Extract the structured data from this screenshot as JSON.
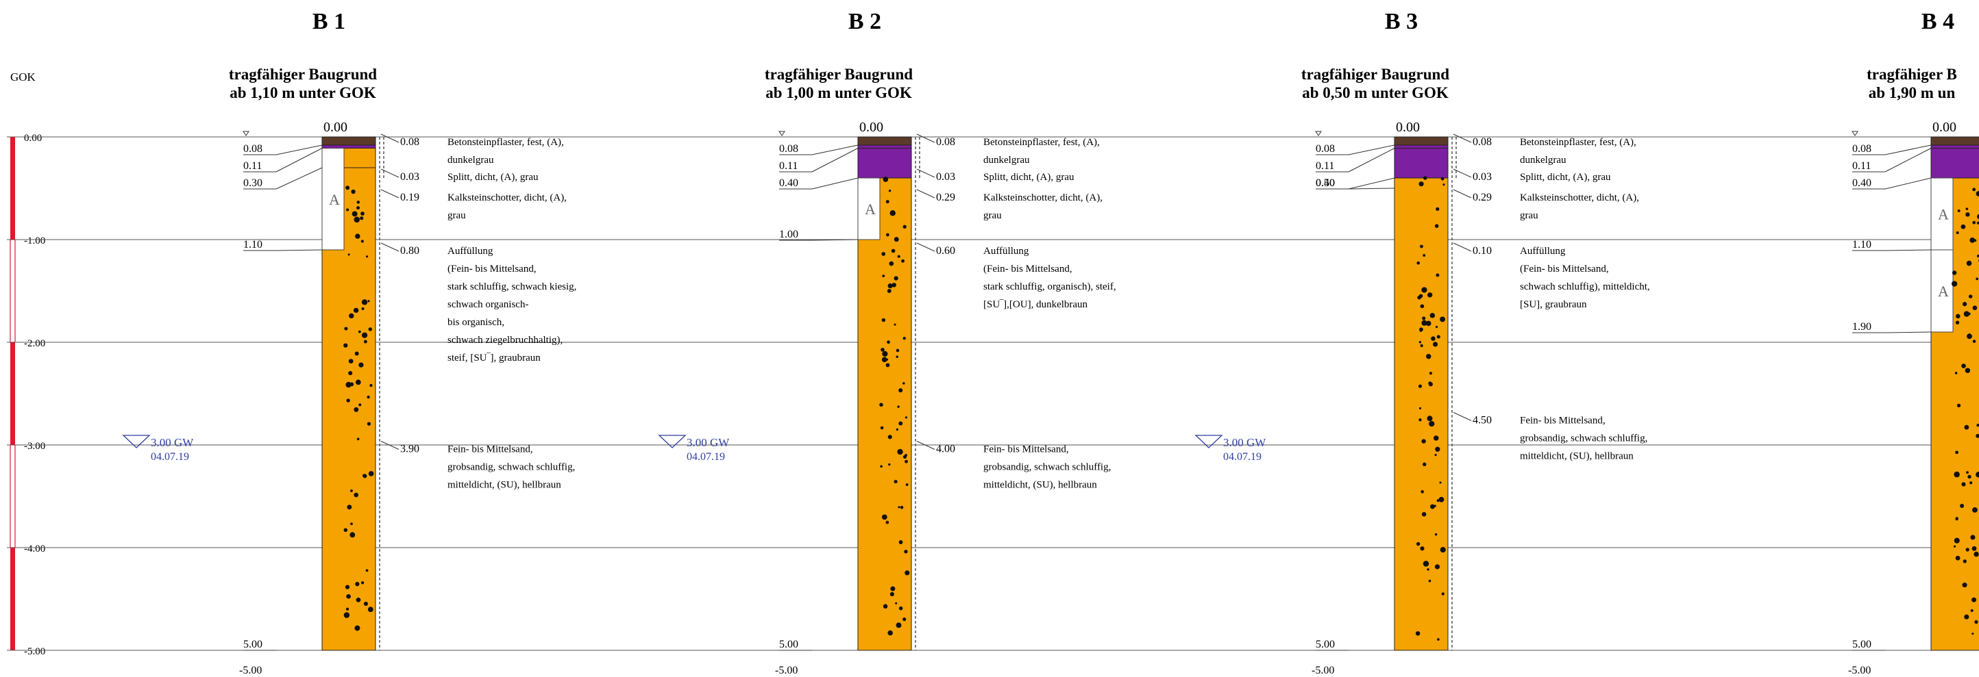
{
  "depth_scale": {
    "title": "GOK",
    "ticks": [
      "0.00",
      "-1.00",
      "-2.00",
      "-3.00",
      "-4.00",
      "-5.00"
    ]
  },
  "colors": {
    "pavement": "#5b3a29",
    "split": "#7c1fa0",
    "fill": "#f5a300",
    "scale_red": "#e0192d",
    "water": "#2f3f9e",
    "line": "#333333"
  },
  "boreholes": [
    {
      "id": "B 1",
      "header": [
        "tragfähiger Baugrund",
        "ab 1,10 m unter GOK"
      ],
      "top_label": "0.00",
      "depth_labels": [
        "0.08",
        "0.11",
        "0.30",
        "1.10",
        "5.00"
      ],
      "bottom_label": "-5.00",
      "layers": [
        {
          "top": 0.0,
          "bottom": 0.08,
          "material": "pavement"
        },
        {
          "top": 0.08,
          "bottom": 0.11,
          "material": "split"
        },
        {
          "top": 0.11,
          "bottom": 0.3,
          "material": "fill"
        },
        {
          "top": 0.3,
          "bottom": 5.0,
          "material": "fill"
        }
      ],
      "sample_a": [
        {
          "top": 0.11,
          "bottom": 1.1,
          "label": "A"
        }
      ],
      "thickness": [
        {
          "value": "0.08",
          "depth": 0.04
        },
        {
          "value": "0.03",
          "depth": 0.38
        },
        {
          "value": "0.19",
          "depth": 0.58
        },
        {
          "value": "0.80",
          "depth": 1.1
        },
        {
          "value": "3.90",
          "depth": 3.03
        }
      ],
      "descriptions": [
        {
          "depth": 0.04,
          "lines": [
            "Betonsteinpflaster, fest, (A),",
            "dunkelgrau"
          ]
        },
        {
          "depth": 0.38,
          "lines": [
            "Splitt, dicht, (A), grau"
          ]
        },
        {
          "depth": 0.58,
          "lines": [
            "Kalksteinschotter, dicht, (A),",
            "grau"
          ]
        },
        {
          "depth": 1.1,
          "lines": [
            "Auffüllung",
            "(Fein- bis Mittelsand,",
            "stark schluffig, schwach kiesig,",
            "schwach organisch-",
            "bis organisch,",
            "schwach ziegelbruchhaltig),",
            "steif, [SU‾], graubraun"
          ]
        },
        {
          "depth": 3.03,
          "lines": [
            "Fein- bis Mittelsand,",
            "grobsandig, schwach schluffig,",
            "mitteldicht, (SU), hellbraun"
          ]
        }
      ],
      "groundwater": {
        "depth": 3.0,
        "label": "3.00 GW",
        "date": "04.07.19"
      }
    },
    {
      "id": "B 2",
      "header": [
        "tragfähiger Baugrund",
        "ab 1,00 m unter GOK"
      ],
      "top_label": "0.00",
      "depth_labels": [
        "0.08",
        "0.11",
        "0.40",
        "1.00",
        "5.00"
      ],
      "bottom_label": "-5.00",
      "layers": [
        {
          "top": 0.0,
          "bottom": 0.08,
          "material": "pavement"
        },
        {
          "top": 0.08,
          "bottom": 0.11,
          "material": "split"
        },
        {
          "top": 0.11,
          "bottom": 0.4,
          "material": "split"
        },
        {
          "top": 0.4,
          "bottom": 5.0,
          "material": "fill"
        }
      ],
      "sample_a": [
        {
          "top": 0.4,
          "bottom": 1.0,
          "label": "A"
        }
      ],
      "thickness": [
        {
          "value": "0.08",
          "depth": 0.04
        },
        {
          "value": "0.03",
          "depth": 0.38
        },
        {
          "value": "0.29",
          "depth": 0.58
        },
        {
          "value": "0.60",
          "depth": 1.1
        },
        {
          "value": "4.00",
          "depth": 3.03
        }
      ],
      "descriptions": [
        {
          "depth": 0.04,
          "lines": [
            "Betonsteinpflaster, fest, (A),",
            "dunkelgrau"
          ]
        },
        {
          "depth": 0.38,
          "lines": [
            "Splitt, dicht, (A), grau"
          ]
        },
        {
          "depth": 0.58,
          "lines": [
            "Kalksteinschotter, dicht, (A),",
            "grau"
          ]
        },
        {
          "depth": 1.1,
          "lines": [
            "Auffüllung",
            "(Fein- bis Mittelsand,",
            "stark schluffig, organisch), steif,",
            "[SU‾],[OU], dunkelbraun"
          ]
        },
        {
          "depth": 3.03,
          "lines": [
            "Fein- bis Mittelsand,",
            "grobsandig, schwach schluffig,",
            "mitteldicht, (SU), hellbraun"
          ]
        }
      ],
      "groundwater": {
        "depth": 3.0,
        "label": "3.00 GW",
        "date": "04.07.19"
      }
    },
    {
      "id": "B 3",
      "header": [
        "tragfähiger Baugrund",
        "ab 0,50 m unter GOK"
      ],
      "top_label": "0.00",
      "depth_labels": [
        "0.08",
        "0.11",
        "0.40",
        "0.50",
        "5.00"
      ],
      "bottom_label": "-5.00",
      "layers": [
        {
          "top": 0.0,
          "bottom": 0.08,
          "material": "pavement"
        },
        {
          "top": 0.08,
          "bottom": 0.11,
          "material": "split"
        },
        {
          "top": 0.11,
          "bottom": 0.4,
          "material": "split"
        },
        {
          "top": 0.4,
          "bottom": 5.0,
          "material": "fill"
        }
      ],
      "sample_a": [],
      "thickness": [
        {
          "value": "0.08",
          "depth": 0.04
        },
        {
          "value": "0.03",
          "depth": 0.38
        },
        {
          "value": "0.29",
          "depth": 0.58
        },
        {
          "value": "0.10",
          "depth": 1.1
        },
        {
          "value": "4.50",
          "depth": 2.75
        }
      ],
      "descriptions": [
        {
          "depth": 0.04,
          "lines": [
            "Betonsteinpflaster, fest, (A),",
            "dunkelgrau"
          ]
        },
        {
          "depth": 0.38,
          "lines": [
            "Splitt, dicht, (A), grau"
          ]
        },
        {
          "depth": 0.58,
          "lines": [
            "Kalksteinschotter, dicht, (A),",
            "grau"
          ]
        },
        {
          "depth": 1.1,
          "lines": [
            "Auffüllung",
            "(Fein- bis Mittelsand,",
            "schwach schluffig), mitteldicht,",
            "[SU], graubraun"
          ]
        },
        {
          "depth": 2.75,
          "lines": [
            "Fein- bis Mittelsand,",
            "grobsandig, schwach schluffig,",
            "mitteldicht, (SU), hellbraun"
          ]
        }
      ],
      "groundwater": {
        "depth": 3.0,
        "label": "3.00 GW",
        "date": "04.07.19"
      }
    },
    {
      "id": "B 4",
      "header": [
        "tragfähiger B",
        "ab 1,90 m un"
      ],
      "top_label": "0.00",
      "depth_labels": [
        "0.08",
        "0.11",
        "0.40",
        "1.10",
        "1.90",
        "5.00"
      ],
      "bottom_label": "-5.00",
      "layers": [
        {
          "top": 0.0,
          "bottom": 0.08,
          "material": "pavement"
        },
        {
          "top": 0.08,
          "bottom": 0.11,
          "material": "split"
        },
        {
          "top": 0.11,
          "bottom": 0.4,
          "material": "split"
        },
        {
          "top": 0.4,
          "bottom": 5.0,
          "material": "fill"
        }
      ],
      "sample_a": [
        {
          "top": 0.4,
          "bottom": 1.1,
          "label": "A"
        },
        {
          "top": 1.1,
          "bottom": 1.9,
          "label": "A"
        }
      ],
      "thickness": [],
      "descriptions": [],
      "groundwater": null
    }
  ]
}
